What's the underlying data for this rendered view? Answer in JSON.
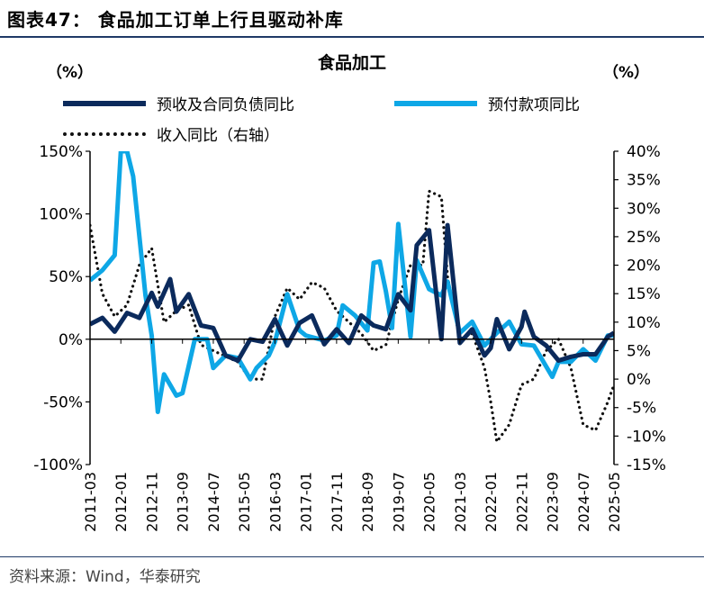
{
  "figure_title": "图表47：  食品加工订单上行且驱动补库",
  "source": "资料来源：Wind，华泰研究",
  "chart_data": {
    "type": "line",
    "title": "食品加工",
    "left_unit": "（%）",
    "right_unit": "（%）",
    "left_axis": {
      "ylim": [
        -100,
        150
      ],
      "ticks": [
        "150%",
        "100%",
        "50%",
        "0%",
        "-50%",
        "-100%"
      ],
      "tick_values": [
        150,
        100,
        50,
        0,
        -50,
        -100
      ]
    },
    "right_axis": {
      "ylim": [
        -15,
        40
      ],
      "ticks": [
        "40%",
        "35%",
        "30%",
        "25%",
        "20%",
        "15%",
        "10%",
        "5%",
        "0%",
        "-5%",
        "-10%",
        "-15%"
      ],
      "tick_values": [
        40,
        35,
        30,
        25,
        20,
        15,
        10,
        5,
        0,
        -5,
        -10,
        -15
      ]
    },
    "x_tick_labels": [
      "2011-03",
      "2012-01",
      "2012-11",
      "2013-09",
      "2014-07",
      "2015-05",
      "2016-03",
      "2017-01",
      "2017-11",
      "2018-09",
      "2019-07",
      "2020-05",
      "2021-03",
      "2022-01",
      "2022-11",
      "2023-09",
      "2024-07",
      "2025-05"
    ],
    "x_range": [
      "2011-03",
      "2025-05"
    ],
    "series": [
      {
        "name": "预收及合同负债同比",
        "axis": "left",
        "color": "#0b2a5c",
        "style": "solid",
        "x": [
          "2011-03",
          "2011-07",
          "2011-11",
          "2012-03",
          "2012-07",
          "2012-11",
          "2013-01",
          "2013-05",
          "2013-07",
          "2013-11",
          "2014-03",
          "2014-07",
          "2014-11",
          "2015-03",
          "2015-07",
          "2015-11",
          "2016-03",
          "2016-07",
          "2016-11",
          "2017-03",
          "2017-07",
          "2017-11",
          "2018-03",
          "2018-07",
          "2018-11",
          "2019-03",
          "2019-07",
          "2019-11",
          "2020-01",
          "2020-05",
          "2020-09",
          "2020-11",
          "2021-03",
          "2021-07",
          "2021-11",
          "2022-01",
          "2022-03",
          "2022-07",
          "2022-11",
          "2022-12",
          "2023-03",
          "2023-07",
          "2023-11",
          "2024-03",
          "2024-07",
          "2024-11",
          "2025-03",
          "2025-05"
        ],
        "values": [
          12,
          17,
          6,
          21,
          17,
          37,
          26,
          48,
          22,
          36,
          11,
          9,
          -13,
          -17,
          0,
          -2,
          16,
          -5,
          13,
          19,
          -4,
          8,
          -3,
          19,
          11,
          8,
          36,
          23,
          75,
          87,
          0,
          91,
          -3,
          8,
          -13,
          -7,
          16,
          -8,
          10,
          22,
          2,
          -5,
          -17,
          -14,
          -12,
          -12,
          2,
          5
        ]
      },
      {
        "name": "预付款项同比",
        "axis": "left",
        "color": "#0ea7e6",
        "style": "solid",
        "x": [
          "2011-03",
          "2011-07",
          "2011-11",
          "2012-01",
          "2012-03",
          "2012-05",
          "2012-09",
          "2012-11",
          "2013-01",
          "2013-03",
          "2013-07",
          "2013-09",
          "2014-01",
          "2014-05",
          "2014-07",
          "2014-11",
          "2015-03",
          "2015-07",
          "2015-09",
          "2016-01",
          "2016-03",
          "2016-07",
          "2016-11",
          "2017-01",
          "2017-07",
          "2017-11",
          "2018-01",
          "2018-05",
          "2018-09",
          "2018-11",
          "2019-01",
          "2019-03",
          "2019-05",
          "2019-07",
          "2019-11",
          "2020-01",
          "2020-05",
          "2020-09",
          "2020-11",
          "2021-03",
          "2021-07",
          "2021-11",
          "2022-03",
          "2022-07",
          "2022-11",
          "2023-03",
          "2023-09",
          "2023-11",
          "2024-03",
          "2024-07",
          "2024-11",
          "2025-03",
          "2025-05"
        ],
        "values": [
          47,
          55,
          67,
          150,
          150,
          130,
          35,
          3,
          -58,
          -28,
          -45,
          -43,
          0,
          0,
          -23,
          -13,
          -15,
          -32,
          -23,
          -13,
          -2,
          36,
          7,
          3,
          -1,
          3,
          27,
          19,
          7,
          61,
          62,
          38,
          9,
          92,
          2,
          63,
          40,
          35,
          46,
          5,
          14,
          -5,
          5,
          14,
          -4,
          -5,
          -30,
          -18,
          -18,
          -8,
          -17,
          3,
          3
        ]
      },
      {
        "name": "收入同比（右轴）",
        "axis": "right",
        "color": "#111111",
        "style": "dotted",
        "x": [
          "2011-03",
          "2011-07",
          "2011-11",
          "2012-03",
          "2012-07",
          "2012-11",
          "2013-03",
          "2013-07",
          "2013-11",
          "2014-03",
          "2014-07",
          "2014-11",
          "2015-03",
          "2015-07",
          "2015-11",
          "2016-03",
          "2016-07",
          "2016-11",
          "2017-03",
          "2017-07",
          "2017-11",
          "2018-03",
          "2018-07",
          "2018-11",
          "2019-03",
          "2019-07",
          "2019-11",
          "2020-03",
          "2020-05",
          "2020-09",
          "2020-11",
          "2021-03",
          "2021-07",
          "2021-11",
          "2022-01",
          "2022-03",
          "2022-07",
          "2022-11",
          "2023-03",
          "2023-07",
          "2023-11",
          "2024-03",
          "2024-07",
          "2024-11",
          "2025-03",
          "2025-05"
        ],
        "values": [
          27,
          15,
          11,
          13,
          20,
          23,
          10,
          12,
          13,
          6,
          5,
          4,
          3,
          0,
          0,
          11,
          16,
          14,
          17,
          16,
          12,
          10,
          8,
          5,
          6,
          14,
          20,
          20,
          33,
          32,
          18,
          7,
          8,
          2,
          -4,
          -11,
          -8,
          -1,
          0,
          5,
          7,
          2,
          -8,
          -9,
          -4,
          -1
        ]
      }
    ],
    "legend": {
      "placement": "top",
      "columns": 2
    },
    "grid": false
  }
}
